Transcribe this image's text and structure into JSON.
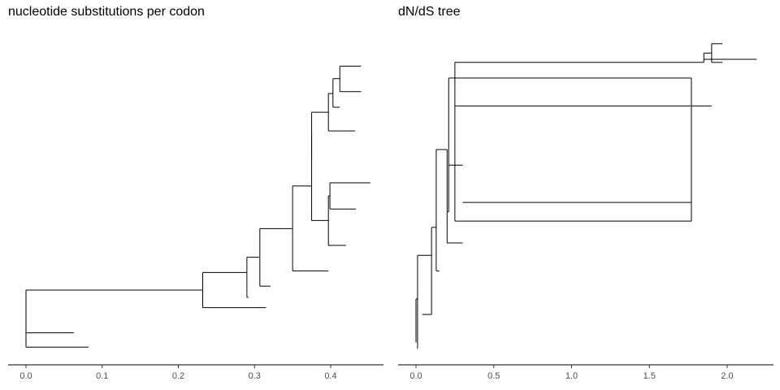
{
  "chart_data": [
    {
      "type": "tree",
      "title": "nucleotide substitutions per codon",
      "xlim": [
        0,
        0.45
      ],
      "x_ticks": [
        0.0,
        0.1,
        0.2,
        0.3,
        0.4
      ],
      "x_tick_labels": [
        "0.0",
        "0.1",
        "0.2",
        "0.3",
        "0.4"
      ],
      "grid": false,
      "nodes": [
        {
          "x": 0.0,
          "y": 9.0,
          "children": [
            1,
            2
          ]
        },
        {
          "x": 0.0,
          "y": 3.0,
          "children": [
            5,
            6
          ]
        },
        {
          "x": 0.232,
          "y": 19.85,
          "children": [
            3,
            4
          ]
        },
        {
          "x": 0.29,
          "y": 25.5,
          "children": [
            7,
            8
          ]
        },
        {
          "x": 0.315,
          "y": 14.2
        },
        {
          "x": 0.063,
          "y": 6.1
        },
        {
          "x": 0.082,
          "y": 1.5
        },
        {
          "x": 0.292,
          "y": 17.5
        },
        {
          "x": 0.307,
          "y": 30.4,
          "children": [
            9,
            10
          ]
        },
        {
          "x": 0.321,
          "y": 21.1
        },
        {
          "x": 0.35,
          "y": 39.6,
          "children": [
            11,
            12
          ]
        },
        {
          "x": 0.397,
          "y": 26.0
        },
        {
          "x": 0.375,
          "y": 53.3,
          "children": [
            13,
            14
          ]
        },
        {
          "x": 0.375,
          "y": 69.7,
          "children": [
            15,
            16
          ]
        },
        {
          "x": 0.397,
          "y": 42.2,
          "children": [
            17,
            18
          ]
        },
        {
          "x": 0.375,
          "y": 62.0
        },
        {
          "x": 0.397,
          "y": 77.0,
          "children": [
            19,
            20
          ]
        },
        {
          "x": 0.42,
          "y": 34.2
        },
        {
          "x": 0.399,
          "y": 50.1,
          "children": [
            21,
            22
          ]
        },
        {
          "x": 0.432,
          "y": 71.0
        },
        {
          "x": 0.403,
          "y": 83.0,
          "children": [
            23,
            24
          ]
        },
        {
          "x": 0.452,
          "y": 54.3
        },
        {
          "x": 0.433,
          "y": 45.9
        },
        {
          "x": 0.412,
          "y": 78.6
        },
        {
          "x": 0.412,
          "y": 87.8,
          "children": [
            25,
            26
          ]
        },
        {
          "x": 0.44,
          "y": 91.8
        },
        {
          "x": 0.44,
          "y": 83.6
        }
      ]
    },
    {
      "type": "tree",
      "title": "dN/dS tree",
      "xlim": [
        0,
        2.2
      ],
      "x_ticks": [
        0.0,
        0.5,
        1.0,
        1.5,
        2.0
      ],
      "x_tick_labels": [
        "0.0",
        "0.5",
        "1.0",
        "1.5",
        "2.0"
      ],
      "grid": false,
      "nodes": [
        {
          "x": 0.0,
          "y": 10.0,
          "children": [
            1,
            2
          ]
        },
        {
          "x": 0.0,
          "y": 3.0
        },
        {
          "x": 0.01,
          "y": 17.0,
          "children": [
            3,
            4
          ]
        },
        {
          "x": 0.01,
          "y": 1.0
        },
        {
          "x": 0.1,
          "y": 31.0,
          "children": [
            5,
            6
          ]
        },
        {
          "x": 0.04,
          "y": 12.0
        },
        {
          "x": 0.13,
          "y": 40.0,
          "children": [
            7,
            8
          ]
        },
        {
          "x": 0.15,
          "y": 26.0
        },
        {
          "x": 0.2,
          "y": 65.0,
          "children": [
            9,
            10
          ]
        },
        {
          "x": 0.3,
          "y": 35.0
        },
        {
          "x": 0.21,
          "y": 45.0,
          "children": [
            11,
            12
          ]
        },
        {
          "x": 0.3,
          "y": 60.0
        },
        {
          "x": 1.77,
          "y": 88.0,
          "children": [
            13,
            14
          ]
        },
        {
          "x": 0.25,
          "y": 42.0,
          "children": [
            15,
            16
          ]
        },
        {
          "x": 0.3,
          "y": 48.0
        },
        {
          "x": 1.85,
          "y": 93.0,
          "children": [
            17,
            18
          ]
        },
        {
          "x": 1.9,
          "y": 79.0
        },
        {
          "x": 1.9,
          "y": 96.0,
          "children": [
            19,
            20
          ]
        },
        {
          "x": 2.19,
          "y": 94.0
        },
        {
          "x": 1.97,
          "y": 99.0
        },
        {
          "x": 1.97,
          "y": 93.0
        }
      ]
    }
  ]
}
